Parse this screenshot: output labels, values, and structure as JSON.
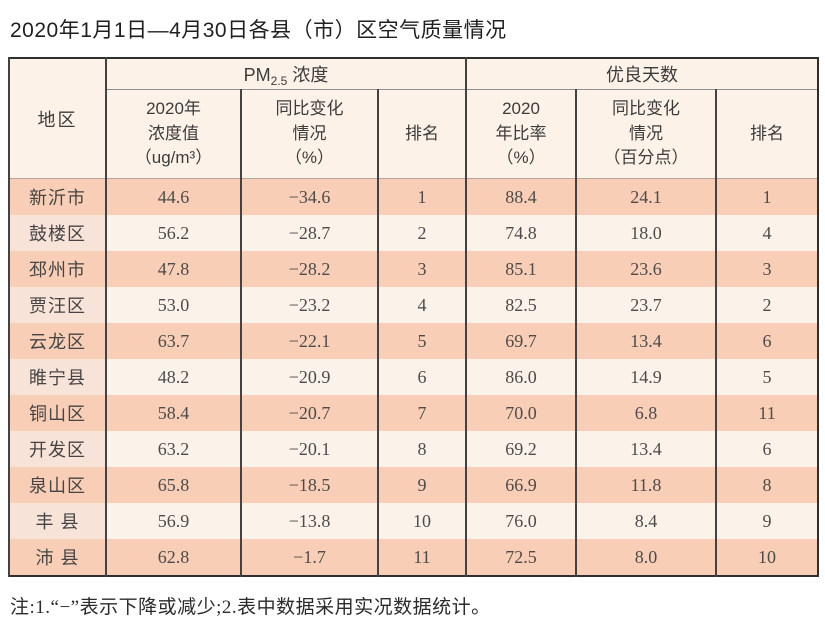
{
  "page": {
    "title": "2020年1月1日—4月30日各县（市）区空气质量情况",
    "footnote": "注:1.“−”表示下降或减少;2.表中数据采用实况数据统计。"
  },
  "table": {
    "header": {
      "region": "地区",
      "pm_group": {
        "prefix": "PM",
        "sub": "2.5",
        "suffix": "浓度"
      },
      "good_days": "优良天数",
      "sub_cols": [
        {
          "lines": [
            "2020年",
            "浓度值",
            "（ug/m³）"
          ]
        },
        {
          "lines": [
            "同比变化",
            "情况",
            "（%）"
          ]
        },
        {
          "lines": [
            "排名"
          ]
        },
        {
          "lines": [
            "2020",
            "年比率",
            "（%）"
          ]
        },
        {
          "lines": [
            "同比变化",
            "情况",
            "（百分点）"
          ]
        },
        {
          "lines": [
            "排名"
          ]
        }
      ]
    },
    "rows": [
      {
        "region": "新沂市",
        "pm_value": "44.6",
        "pm_change": "−34.6",
        "pm_rank": "1",
        "good_rate": "88.4",
        "good_change": "24.1",
        "good_rank": "1"
      },
      {
        "region": "鼓楼区",
        "pm_value": "56.2",
        "pm_change": "−28.7",
        "pm_rank": "2",
        "good_rate": "74.8",
        "good_change": "18.0",
        "good_rank": "4"
      },
      {
        "region": "邳州市",
        "pm_value": "47.8",
        "pm_change": "−28.2",
        "pm_rank": "3",
        "good_rate": "85.1",
        "good_change": "23.6",
        "good_rank": "3"
      },
      {
        "region": "贾汪区",
        "pm_value": "53.0",
        "pm_change": "−23.2",
        "pm_rank": "4",
        "good_rate": "82.5",
        "good_change": "23.7",
        "good_rank": "2"
      },
      {
        "region": "云龙区",
        "pm_value": "63.7",
        "pm_change": "−22.1",
        "pm_rank": "5",
        "good_rate": "69.7",
        "good_change": "13.4",
        "good_rank": "6"
      },
      {
        "region": "睢宁县",
        "pm_value": "48.2",
        "pm_change": "−20.9",
        "pm_rank": "6",
        "good_rate": "86.0",
        "good_change": "14.9",
        "good_rank": "5"
      },
      {
        "region": "铜山区",
        "pm_value": "58.4",
        "pm_change": "−20.7",
        "pm_rank": "7",
        "good_rate": "70.0",
        "good_change": "6.8",
        "good_rank": "11"
      },
      {
        "region": "开发区",
        "pm_value": "63.2",
        "pm_change": "−20.1",
        "pm_rank": "8",
        "good_rate": "69.2",
        "good_change": "13.4",
        "good_rank": "6"
      },
      {
        "region": "泉山区",
        "pm_value": "65.8",
        "pm_change": "−18.5",
        "pm_rank": "9",
        "good_rate": "66.9",
        "good_change": "11.8",
        "good_rank": "8"
      },
      {
        "region": "丰 县",
        "pm_value": "56.9",
        "pm_change": "−13.8",
        "pm_rank": "10",
        "good_rate": "76.0",
        "good_change": "8.4",
        "good_rank": "9"
      },
      {
        "region": "沛 县",
        "pm_value": "62.8",
        "pm_change": "−1.7",
        "pm_rank": "11",
        "good_rate": "72.5",
        "good_change": "8.0",
        "good_rank": "10"
      }
    ]
  },
  "colors": {
    "band_peach": "#f8ceb6",
    "band_cream": "#fbf2ea",
    "region_pink": "#f8e3d8",
    "header_bg": "#fcf2e8",
    "border_dark": "#2f2f2f",
    "grid_line": "#434343"
  }
}
